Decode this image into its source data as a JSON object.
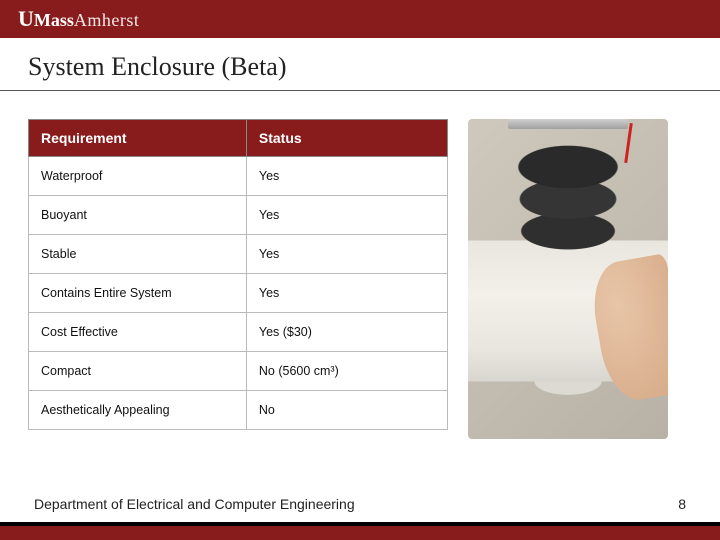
{
  "branding": {
    "logo_u": "U",
    "logo_mass": "Mass",
    "logo_amherst": "Amherst"
  },
  "colors": {
    "brand_maroon": "#881c1c",
    "text": "#222222",
    "border": "#bbbbbb",
    "footer_top_stripe": "#000000"
  },
  "slide": {
    "title": "System Enclosure (Beta)"
  },
  "table": {
    "columns": [
      "Requirement",
      "Status"
    ],
    "rows": [
      {
        "requirement": "Waterproof",
        "status": "Yes"
      },
      {
        "requirement": "Buoyant",
        "status": "Yes"
      },
      {
        "requirement": "Stable",
        "status": "Yes"
      },
      {
        "requirement": "Contains Entire System",
        "status": "Yes"
      },
      {
        "requirement": "Cost Effective",
        "status": "Yes ($30)"
      },
      {
        "requirement": "Compact",
        "status": "No (5600 cm³)"
      },
      {
        "requirement": "Aesthetically Appealing",
        "status": "No"
      }
    ]
  },
  "image": {
    "alt": "Photograph of cylindrical enclosure prototype held in hand: black foam rings on top, white PVC body, metal mounting plate with red wire."
  },
  "footer": {
    "department": "Department of Electrical and Computer Engineering",
    "page_number": "8"
  }
}
